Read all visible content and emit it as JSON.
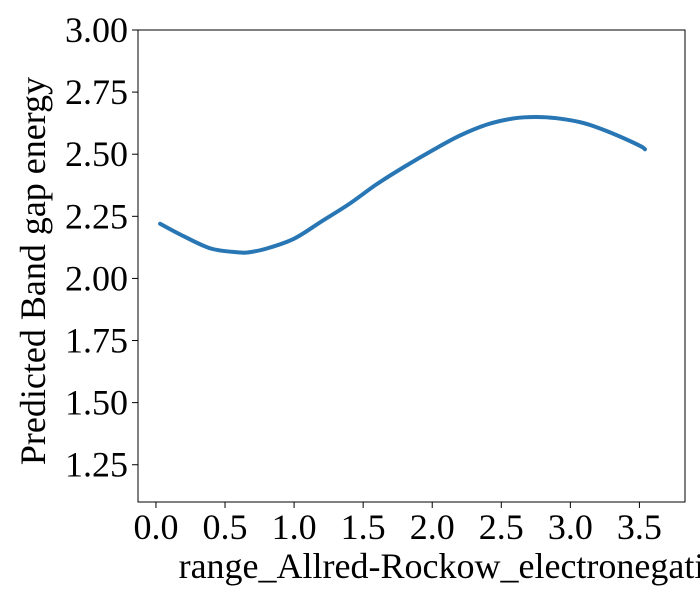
{
  "chart_data": {
    "type": "line",
    "title": "",
    "xlabel": "range_Allred-Rockow_electronegativity",
    "ylabel": "Predicted Band gap energy",
    "xlim": [
      -0.13,
      3.83
    ],
    "ylim": [
      1.1,
      3.0
    ],
    "x_ticks": [
      0.0,
      0.5,
      1.0,
      1.5,
      2.0,
      2.5,
      3.0,
      3.5
    ],
    "x_tick_labels": [
      "0.0",
      "0.5",
      "1.0",
      "1.5",
      "2.0",
      "2.5",
      "3.0",
      "3.5"
    ],
    "y_ticks": [
      1.25,
      1.5,
      1.75,
      2.0,
      2.25,
      2.5,
      2.75,
      3.0
    ],
    "y_tick_labels": [
      "1.25",
      "1.50",
      "1.75",
      "2.00",
      "2.25",
      "2.50",
      "2.75",
      "3.00"
    ],
    "grid": false,
    "series": [
      {
        "color": "#2876b4",
        "x": [
          0.03,
          0.2,
          0.4,
          0.6,
          0.67,
          0.8,
          1.0,
          1.2,
          1.4,
          1.6,
          1.8,
          2.0,
          2.2,
          2.4,
          2.6,
          2.75,
          2.9,
          3.1,
          3.3,
          3.5,
          3.54
        ],
        "y": [
          2.22,
          2.17,
          2.12,
          2.105,
          2.105,
          2.12,
          2.16,
          2.23,
          2.3,
          2.38,
          2.45,
          2.515,
          2.575,
          2.62,
          2.645,
          2.65,
          2.645,
          2.625,
          2.585,
          2.535,
          2.52
        ]
      }
    ]
  }
}
